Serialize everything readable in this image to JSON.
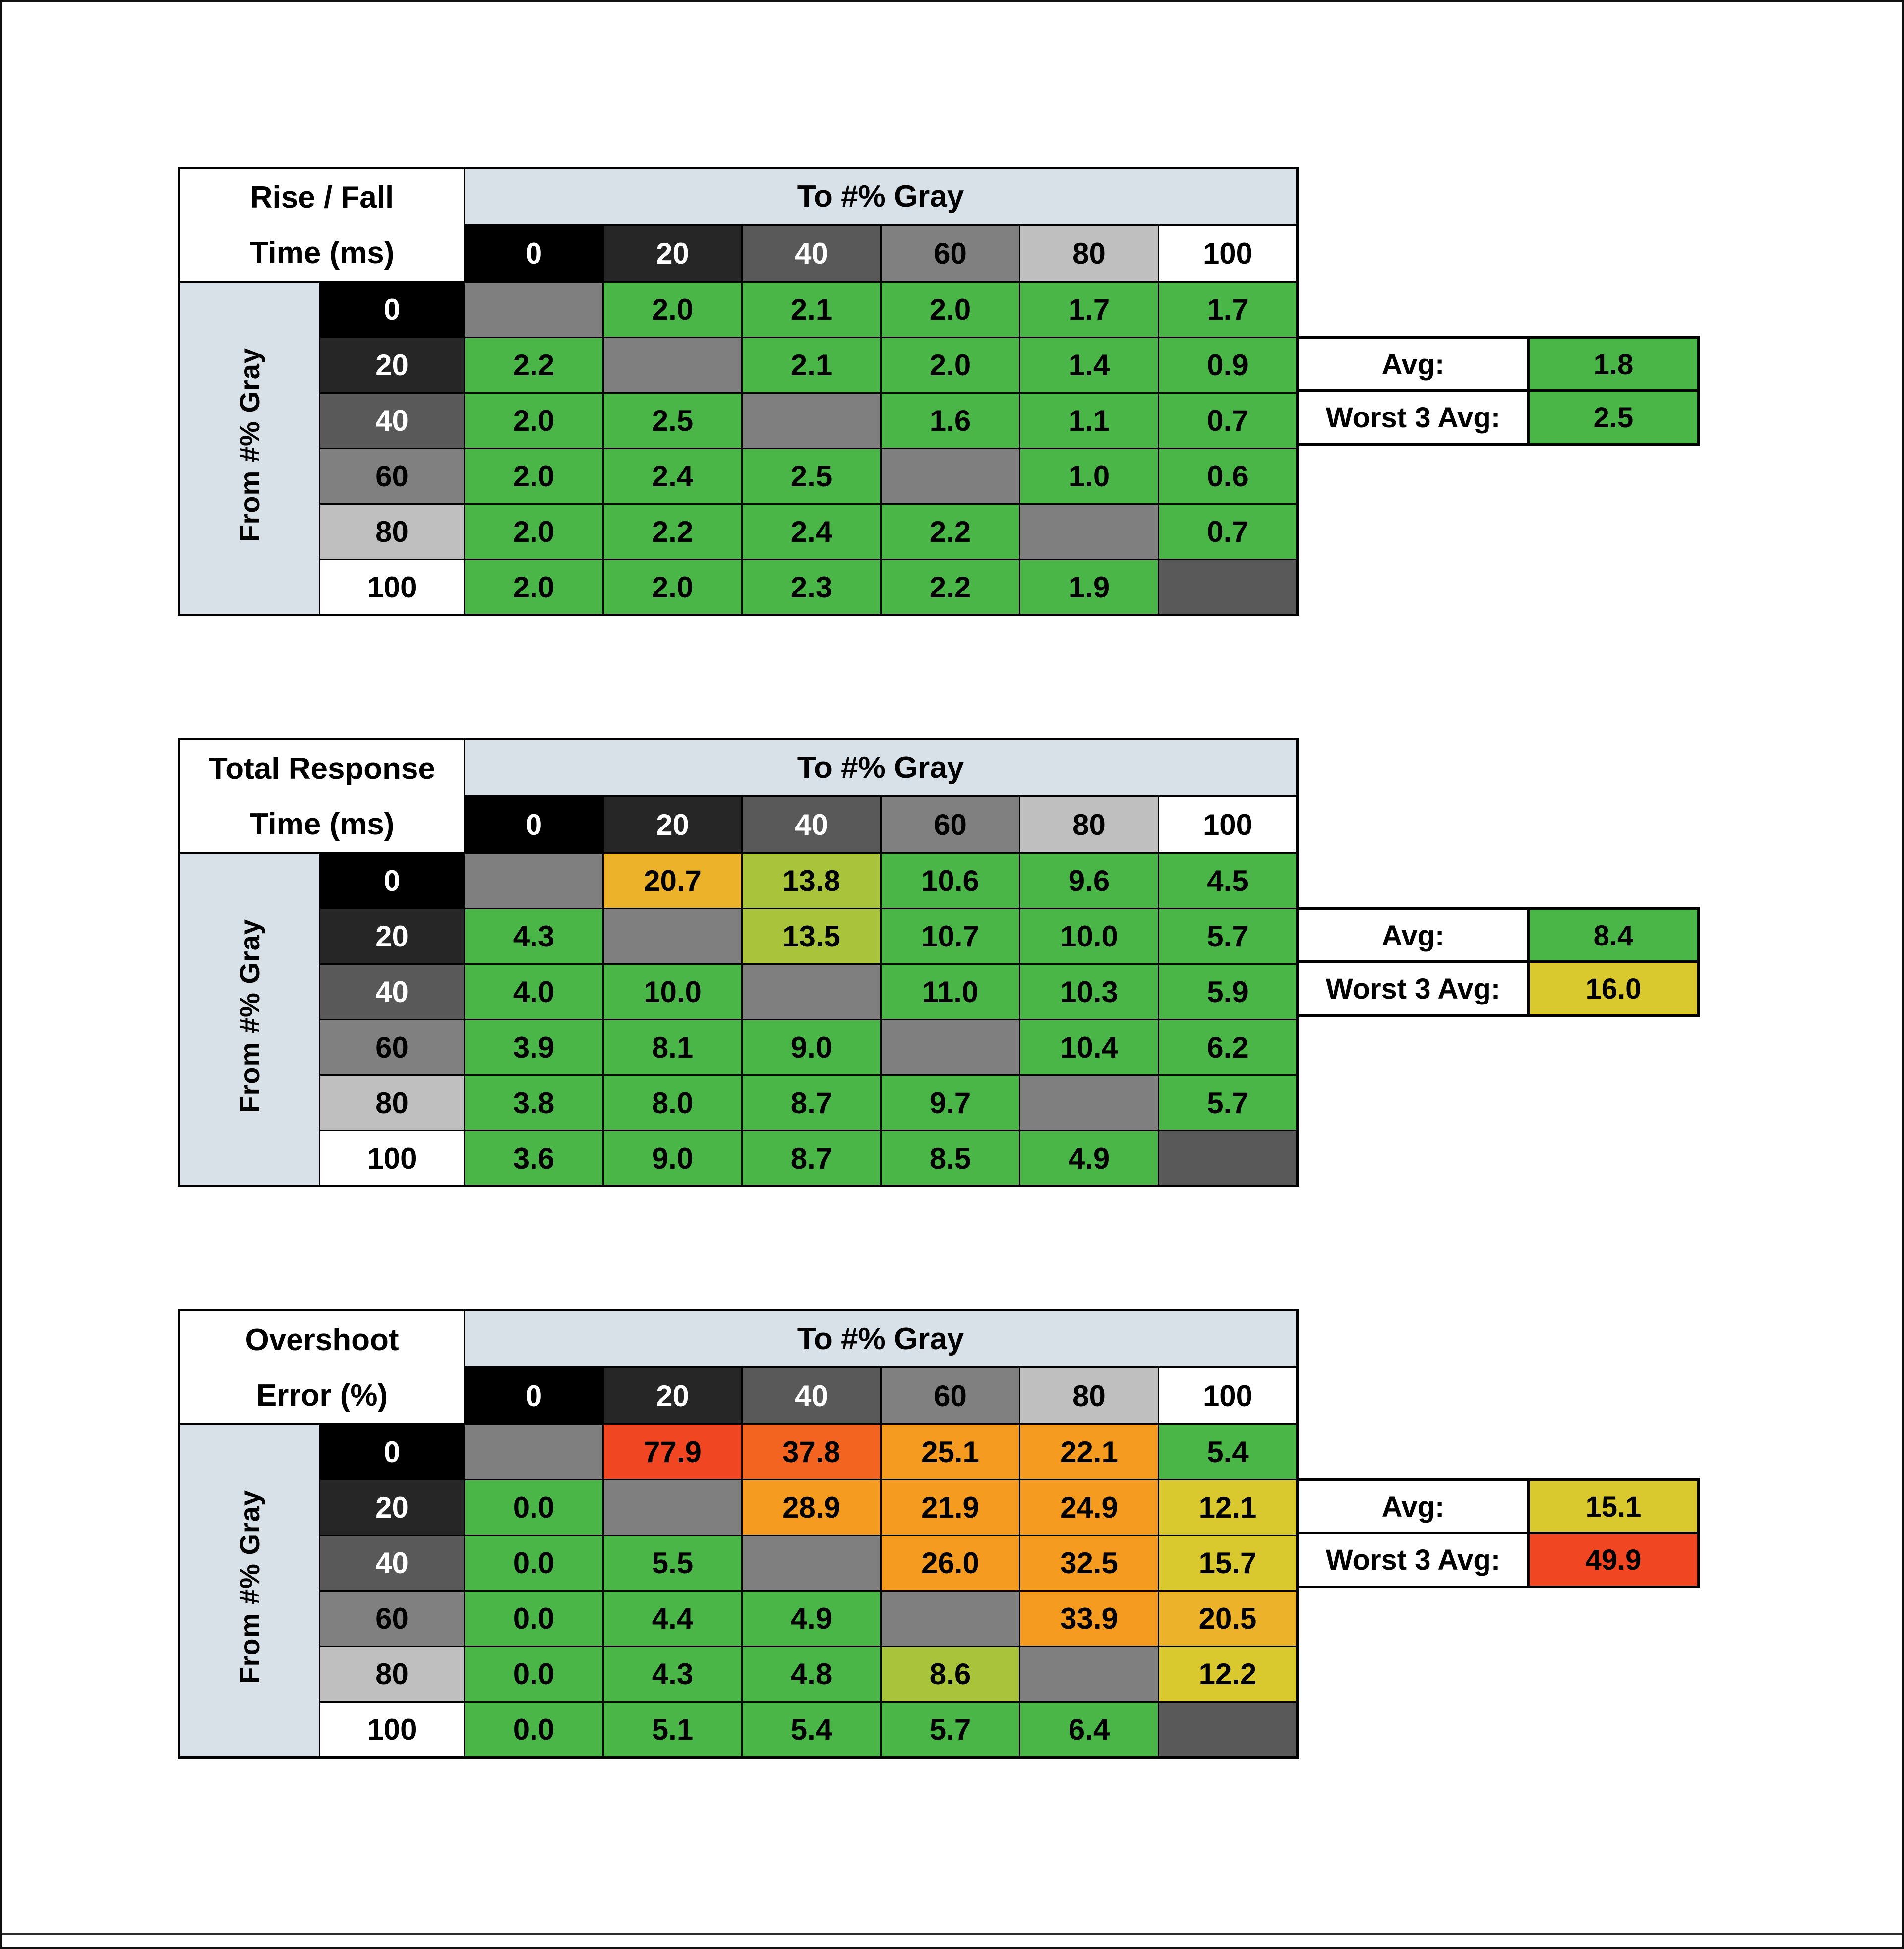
{
  "palette": {
    "band": "#d9e1e8",
    "green": "#4ab648",
    "yellowgreen": "#a9c43b",
    "yellow": "#d9c92e",
    "amber": "#ecb22a",
    "orange": "#f49b20",
    "redorange": "#f2641f",
    "red": "#f04722",
    "diag": "#7f7f7f",
    "diagdark": "#595959"
  },
  "gray_levels": [
    "0",
    "20",
    "40",
    "60",
    "80",
    "100"
  ],
  "gray_scale": [
    {
      "bg": "#000000",
      "fg": "#ffffff"
    },
    {
      "bg": "#262626",
      "fg": "#ffffff"
    },
    {
      "bg": "#595959",
      "fg": "#ffffff"
    },
    {
      "bg": "#808080",
      "fg": "#000000"
    },
    {
      "bg": "#bfbfbf",
      "fg": "#000000"
    },
    {
      "bg": "#ffffff",
      "fg": "#000000"
    }
  ],
  "tables": [
    {
      "id": "rise-fall-time",
      "title1": "Rise / Fall",
      "title2": "Time (ms)",
      "to_label": "To #% Gray",
      "from_label": "From #% Gray",
      "rows": [
        {
          "cells": [
            {
              "v": "",
              "c": "diag"
            },
            {
              "v": "2.0",
              "c": "green"
            },
            {
              "v": "2.1",
              "c": "green"
            },
            {
              "v": "2.0",
              "c": "green"
            },
            {
              "v": "1.7",
              "c": "green"
            },
            {
              "v": "1.7",
              "c": "green"
            }
          ]
        },
        {
          "cells": [
            {
              "v": "2.2",
              "c": "green"
            },
            {
              "v": "",
              "c": "diag"
            },
            {
              "v": "2.1",
              "c": "green"
            },
            {
              "v": "2.0",
              "c": "green"
            },
            {
              "v": "1.4",
              "c": "green"
            },
            {
              "v": "0.9",
              "c": "green"
            }
          ]
        },
        {
          "cells": [
            {
              "v": "2.0",
              "c": "green"
            },
            {
              "v": "2.5",
              "c": "green"
            },
            {
              "v": "",
              "c": "diag"
            },
            {
              "v": "1.6",
              "c": "green"
            },
            {
              "v": "1.1",
              "c": "green"
            },
            {
              "v": "0.7",
              "c": "green"
            }
          ]
        },
        {
          "cells": [
            {
              "v": "2.0",
              "c": "green"
            },
            {
              "v": "2.4",
              "c": "green"
            },
            {
              "v": "2.5",
              "c": "green"
            },
            {
              "v": "",
              "c": "diag"
            },
            {
              "v": "1.0",
              "c": "green"
            },
            {
              "v": "0.6",
              "c": "green"
            }
          ]
        },
        {
          "cells": [
            {
              "v": "2.0",
              "c": "green"
            },
            {
              "v": "2.2",
              "c": "green"
            },
            {
              "v": "2.4",
              "c": "green"
            },
            {
              "v": "2.2",
              "c": "green"
            },
            {
              "v": "",
              "c": "diag"
            },
            {
              "v": "0.7",
              "c": "green"
            }
          ]
        },
        {
          "cells": [
            {
              "v": "2.0",
              "c": "green"
            },
            {
              "v": "2.0",
              "c": "green"
            },
            {
              "v": "2.3",
              "c": "green"
            },
            {
              "v": "2.2",
              "c": "green"
            },
            {
              "v": "1.9",
              "c": "green"
            },
            {
              "v": "",
              "c": "diagdark"
            }
          ]
        }
      ],
      "avg": {
        "label": "Avg:",
        "value": "1.8",
        "c": "green"
      },
      "worst": {
        "label": "Worst 3 Avg:",
        "value": "2.5",
        "c": "green"
      }
    },
    {
      "id": "total-response-time",
      "title1": "Total Response",
      "title2": "Time (ms)",
      "to_label": "To #% Gray",
      "from_label": "From #% Gray",
      "rows": [
        {
          "cells": [
            {
              "v": "",
              "c": "diag"
            },
            {
              "v": "20.7",
              "c": "amber"
            },
            {
              "v": "13.8",
              "c": "yellowgreen"
            },
            {
              "v": "10.6",
              "c": "green"
            },
            {
              "v": "9.6",
              "c": "green"
            },
            {
              "v": "4.5",
              "c": "green"
            }
          ]
        },
        {
          "cells": [
            {
              "v": "4.3",
              "c": "green"
            },
            {
              "v": "",
              "c": "diag"
            },
            {
              "v": "13.5",
              "c": "yellowgreen"
            },
            {
              "v": "10.7",
              "c": "green"
            },
            {
              "v": "10.0",
              "c": "green"
            },
            {
              "v": "5.7",
              "c": "green"
            }
          ]
        },
        {
          "cells": [
            {
              "v": "4.0",
              "c": "green"
            },
            {
              "v": "10.0",
              "c": "green"
            },
            {
              "v": "",
              "c": "diag"
            },
            {
              "v": "11.0",
              "c": "green"
            },
            {
              "v": "10.3",
              "c": "green"
            },
            {
              "v": "5.9",
              "c": "green"
            }
          ]
        },
        {
          "cells": [
            {
              "v": "3.9",
              "c": "green"
            },
            {
              "v": "8.1",
              "c": "green"
            },
            {
              "v": "9.0",
              "c": "green"
            },
            {
              "v": "",
              "c": "diag"
            },
            {
              "v": "10.4",
              "c": "green"
            },
            {
              "v": "6.2",
              "c": "green"
            }
          ]
        },
        {
          "cells": [
            {
              "v": "3.8",
              "c": "green"
            },
            {
              "v": "8.0",
              "c": "green"
            },
            {
              "v": "8.7",
              "c": "green"
            },
            {
              "v": "9.7",
              "c": "green"
            },
            {
              "v": "",
              "c": "diag"
            },
            {
              "v": "5.7",
              "c": "green"
            }
          ]
        },
        {
          "cells": [
            {
              "v": "3.6",
              "c": "green"
            },
            {
              "v": "9.0",
              "c": "green"
            },
            {
              "v": "8.7",
              "c": "green"
            },
            {
              "v": "8.5",
              "c": "green"
            },
            {
              "v": "4.9",
              "c": "green"
            },
            {
              "v": "",
              "c": "diagdark"
            }
          ]
        }
      ],
      "avg": {
        "label": "Avg:",
        "value": "8.4",
        "c": "green"
      },
      "worst": {
        "label": "Worst 3 Avg:",
        "value": "16.0",
        "c": "yellow"
      }
    },
    {
      "id": "overshoot-error",
      "title1": "Overshoot",
      "title2": "Error (%)",
      "to_label": "To #% Gray",
      "from_label": "From #% Gray",
      "rows": [
        {
          "cells": [
            {
              "v": "",
              "c": "diag"
            },
            {
              "v": "77.9",
              "c": "red"
            },
            {
              "v": "37.8",
              "c": "redorange"
            },
            {
              "v": "25.1",
              "c": "orange"
            },
            {
              "v": "22.1",
              "c": "orange"
            },
            {
              "v": "5.4",
              "c": "green"
            }
          ]
        },
        {
          "cells": [
            {
              "v": "0.0",
              "c": "green"
            },
            {
              "v": "",
              "c": "diag"
            },
            {
              "v": "28.9",
              "c": "orange"
            },
            {
              "v": "21.9",
              "c": "orange"
            },
            {
              "v": "24.9",
              "c": "orange"
            },
            {
              "v": "12.1",
              "c": "yellow"
            }
          ]
        },
        {
          "cells": [
            {
              "v": "0.0",
              "c": "green"
            },
            {
              "v": "5.5",
              "c": "green"
            },
            {
              "v": "",
              "c": "diag"
            },
            {
              "v": "26.0",
              "c": "orange"
            },
            {
              "v": "32.5",
              "c": "orange"
            },
            {
              "v": "15.7",
              "c": "yellow"
            }
          ]
        },
        {
          "cells": [
            {
              "v": "0.0",
              "c": "green"
            },
            {
              "v": "4.4",
              "c": "green"
            },
            {
              "v": "4.9",
              "c": "green"
            },
            {
              "v": "",
              "c": "diag"
            },
            {
              "v": "33.9",
              "c": "orange"
            },
            {
              "v": "20.5",
              "c": "amber"
            }
          ]
        },
        {
          "cells": [
            {
              "v": "0.0",
              "c": "green"
            },
            {
              "v": "4.3",
              "c": "green"
            },
            {
              "v": "4.8",
              "c": "green"
            },
            {
              "v": "8.6",
              "c": "yellowgreen"
            },
            {
              "v": "",
              "c": "diag"
            },
            {
              "v": "12.2",
              "c": "yellow"
            }
          ]
        },
        {
          "cells": [
            {
              "v": "0.0",
              "c": "green"
            },
            {
              "v": "5.1",
              "c": "green"
            },
            {
              "v": "5.4",
              "c": "green"
            },
            {
              "v": "5.7",
              "c": "green"
            },
            {
              "v": "6.4",
              "c": "green"
            },
            {
              "v": "",
              "c": "diagdark"
            }
          ]
        }
      ],
      "avg": {
        "label": "Avg:",
        "value": "15.1",
        "c": "yellow"
      },
      "worst": {
        "label": "Worst 3 Avg:",
        "value": "49.9",
        "c": "red"
      }
    }
  ],
  "chart_data": [
    {
      "type": "heatmap",
      "title": "Rise / Fall Time (ms)",
      "xlabel": "To #% Gray",
      "ylabel": "From #% Gray",
      "categories": [
        "0",
        "20",
        "40",
        "60",
        "80",
        "100"
      ],
      "values": [
        [
          null,
          2.0,
          2.1,
          2.0,
          1.7,
          1.7
        ],
        [
          2.2,
          null,
          2.1,
          2.0,
          1.4,
          0.9
        ],
        [
          2.0,
          2.5,
          null,
          1.6,
          1.1,
          0.7
        ],
        [
          2.0,
          2.4,
          2.5,
          null,
          1.0,
          0.6
        ],
        [
          2.0,
          2.2,
          2.4,
          2.2,
          null,
          0.7
        ],
        [
          2.0,
          2.0,
          2.3,
          2.2,
          1.9,
          null
        ]
      ],
      "avg": 1.8,
      "worst_3_avg": 2.5
    },
    {
      "type": "heatmap",
      "title": "Total Response Time (ms)",
      "xlabel": "To #% Gray",
      "ylabel": "From #% Gray",
      "categories": [
        "0",
        "20",
        "40",
        "60",
        "80",
        "100"
      ],
      "values": [
        [
          null,
          20.7,
          13.8,
          10.6,
          9.6,
          4.5
        ],
        [
          4.3,
          null,
          13.5,
          10.7,
          10.0,
          5.7
        ],
        [
          4.0,
          10.0,
          null,
          11.0,
          10.3,
          5.9
        ],
        [
          3.9,
          8.1,
          9.0,
          null,
          10.4,
          6.2
        ],
        [
          3.8,
          8.0,
          8.7,
          9.7,
          null,
          5.7
        ],
        [
          3.6,
          9.0,
          8.7,
          8.5,
          4.9,
          null
        ]
      ],
      "avg": 8.4,
      "worst_3_avg": 16.0
    },
    {
      "type": "heatmap",
      "title": "Overshoot Error (%)",
      "xlabel": "To #% Gray",
      "ylabel": "From #% Gray",
      "categories": [
        "0",
        "20",
        "40",
        "60",
        "80",
        "100"
      ],
      "values": [
        [
          null,
          77.9,
          37.8,
          25.1,
          22.1,
          5.4
        ],
        [
          0.0,
          null,
          28.9,
          21.9,
          24.9,
          12.1
        ],
        [
          0.0,
          5.5,
          null,
          26.0,
          32.5,
          15.7
        ],
        [
          0.0,
          4.4,
          4.9,
          null,
          33.9,
          20.5
        ],
        [
          0.0,
          4.3,
          4.8,
          8.6,
          null,
          12.2
        ],
        [
          0.0,
          5.1,
          5.4,
          5.7,
          6.4,
          null
        ]
      ],
      "avg": 15.1,
      "worst_3_avg": 49.9
    }
  ]
}
